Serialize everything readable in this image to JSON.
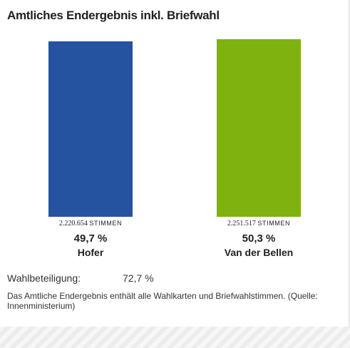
{
  "title": "Amtliches Endergebnis inkl. Briefwahl",
  "chart_data": {
    "type": "bar",
    "title": "Amtliches Endergebnis inkl. Briefwahl",
    "categories": [
      "Hofer",
      "Van der Bellen"
    ],
    "values": [
      49.7,
      50.3
    ],
    "value_labels": [
      "49,7 %",
      "50,3 %"
    ],
    "votes": [
      2220654,
      2251517
    ],
    "vote_labels": [
      "2.220.654",
      "2.251.517"
    ],
    "unit_label": "STIMMEN",
    "colors": [
      "#2553a0",
      "#80b20f"
    ],
    "ylim": [
      0,
      50.3
    ],
    "grid": false
  },
  "turnout": {
    "label": "Wahlbeteiligung:",
    "value": "72,7 %"
  },
  "note": "Das Amtliche Endergebnis enthält alle Wahlkarten und Briefwahlstimmen. (Quelle: Innenministerium)"
}
